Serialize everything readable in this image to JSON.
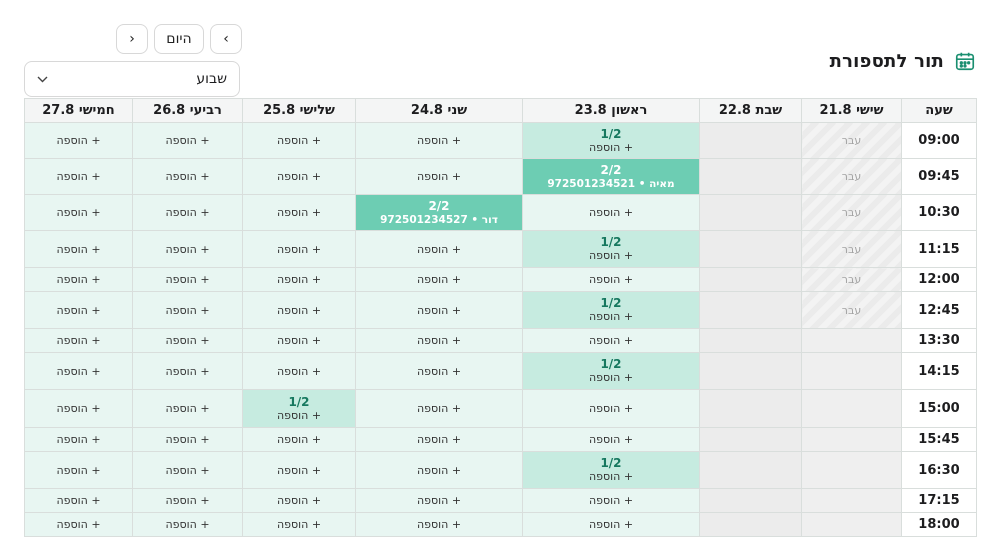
{
  "title": "תור לתספורת",
  "nav": {
    "prev": "‹",
    "today": "היום",
    "next": "›"
  },
  "view_select": {
    "value": "שבוע"
  },
  "columns": [
    "שעה",
    "שישי 21.8",
    "שבת 22.8",
    "ראשון 23.8",
    "שני 24.8",
    "שלישי 25.8",
    "רביעי 26.8",
    "חמישי 27.8"
  ],
  "labels": {
    "add": "+ הוספה",
    "past": "עבר"
  },
  "rows": [
    {
      "time": "09:00",
      "h": 36,
      "fri": "past",
      "sun": {
        "t": "part",
        "count": "1/2"
      }
    },
    {
      "time": "09:45",
      "h": 36,
      "fri": "past",
      "sun": {
        "t": "full",
        "count": "2/2",
        "who": "מאיה • 972501234521"
      }
    },
    {
      "time": "10:30",
      "h": 36,
      "fri": "past",
      "mon": {
        "t": "full",
        "count": "2/2",
        "who": "דור • 972501234527"
      }
    },
    {
      "time": "11:15",
      "h": 37,
      "fri": "past",
      "sun": {
        "t": "part",
        "count": "1/2"
      }
    },
    {
      "time": "12:00",
      "h": 24,
      "fri": "past"
    },
    {
      "time": "12:45",
      "h": 37,
      "fri": "past",
      "sun": {
        "t": "part",
        "count": "1/2"
      }
    },
    {
      "time": "13:30",
      "h": 24,
      "fri": "plain"
    },
    {
      "time": "14:15",
      "h": 37,
      "fri": "plain",
      "sun": {
        "t": "part",
        "count": "1/2"
      }
    },
    {
      "time": "15:00",
      "h": 38,
      "fri": "plain",
      "tue": {
        "t": "part",
        "count": "1/2"
      }
    },
    {
      "time": "15:45",
      "h": 24,
      "fri": "plain"
    },
    {
      "time": "16:30",
      "h": 37,
      "fri": "plain",
      "sun": {
        "t": "part",
        "count": "1/2"
      }
    },
    {
      "time": "17:15",
      "h": 24,
      "fri": "plain"
    },
    {
      "time": "18:00",
      "h": 24,
      "fri": "plain"
    }
  ]
}
